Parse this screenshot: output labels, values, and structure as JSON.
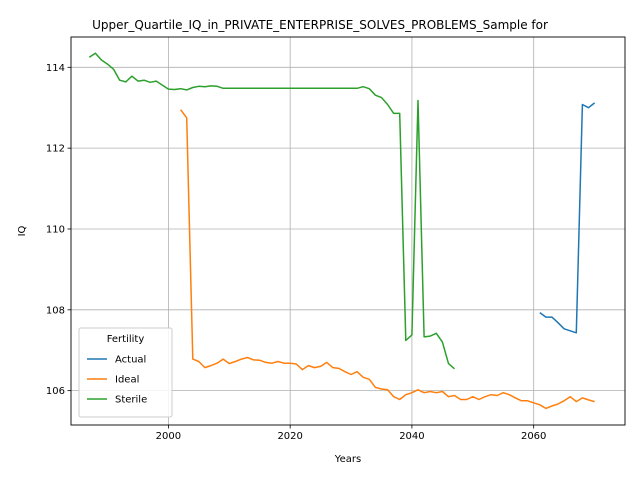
{
  "chart_data": {
    "type": "line",
    "title": "Upper_Quartile_IQ_in_PRIVATE_ENTERPRISE_SOLVES_PROBLEMS_Sample for",
    "xlabel": "Years",
    "ylabel": "IQ",
    "xlim": [
      1984,
      2075
    ],
    "ylim": [
      105.15,
      114.75
    ],
    "xticks": [
      2000,
      2020,
      2040,
      2060
    ],
    "yticks": [
      106,
      108,
      110,
      112,
      114
    ],
    "grid": true,
    "legend": {
      "title": "Fertility",
      "placement": "lower-left"
    },
    "series": [
      {
        "name": "Actual",
        "color": "#1f77b4",
        "x": [
          2061,
          2062,
          2063,
          2064,
          2065,
          2066,
          2067,
          2068,
          2069,
          2070
        ],
        "y": [
          107.93,
          107.82,
          107.82,
          107.68,
          107.53,
          107.48,
          107.43,
          113.08,
          113.0,
          113.12
        ]
      },
      {
        "name": "Ideal",
        "color": "#ff7f0e",
        "x": [
          2002,
          2003,
          2004,
          2005,
          2006,
          2007,
          2008,
          2009,
          2010,
          2011,
          2012,
          2013,
          2014,
          2015,
          2016,
          2017,
          2018,
          2019,
          2020,
          2021,
          2022,
          2023,
          2024,
          2025,
          2026,
          2027,
          2028,
          2029,
          2030,
          2031,
          2032,
          2033,
          2034,
          2035,
          2036,
          2037,
          2038,
          2039,
          2040,
          2041,
          2042,
          2043,
          2044,
          2045,
          2046,
          2047,
          2048,
          2049,
          2050,
          2051,
          2052,
          2053,
          2054,
          2055,
          2056,
          2057,
          2058,
          2059,
          2060,
          2061,
          2062,
          2063,
          2064,
          2065,
          2066,
          2067,
          2068,
          2069,
          2070
        ],
        "y": [
          112.95,
          112.75,
          106.78,
          106.72,
          106.57,
          106.62,
          106.68,
          106.78,
          106.67,
          106.72,
          106.78,
          106.82,
          106.76,
          106.75,
          106.7,
          106.68,
          106.72,
          106.68,
          106.68,
          106.66,
          106.52,
          106.62,
          106.57,
          106.6,
          106.7,
          106.57,
          106.55,
          106.47,
          106.4,
          106.47,
          106.33,
          106.28,
          106.08,
          106.04,
          106.02,
          105.85,
          105.78,
          105.9,
          105.95,
          106.02,
          105.95,
          105.98,
          105.95,
          105.98,
          105.85,
          105.88,
          105.78,
          105.78,
          105.85,
          105.78,
          105.85,
          105.9,
          105.88,
          105.95,
          105.9,
          105.82,
          105.75,
          105.75,
          105.7,
          105.65,
          105.56,
          105.62,
          105.67,
          105.75,
          105.85,
          105.73,
          105.82,
          105.77,
          105.73
        ]
      },
      {
        "name": "Sterile",
        "color": "#2ca02c",
        "x": [
          1987,
          1988,
          1989,
          1990,
          1991,
          1992,
          1993,
          1994,
          1995,
          1996,
          1997,
          1998,
          1999,
          2000,
          2001,
          2002,
          2003,
          2004,
          2005,
          2006,
          2007,
          2008,
          2009,
          2010,
          2011,
          2012,
          2013,
          2014,
          2015,
          2016,
          2017,
          2018,
          2019,
          2020,
          2021,
          2022,
          2023,
          2024,
          2025,
          2026,
          2027,
          2028,
          2029,
          2030,
          2031,
          2032,
          2033,
          2034,
          2035,
          2036,
          2037,
          2038,
          2039,
          2040,
          2041,
          2042,
          2043,
          2044,
          2045,
          2046,
          2047
        ],
        "y": [
          114.25,
          114.35,
          114.18,
          114.08,
          113.95,
          113.68,
          113.64,
          113.78,
          113.66,
          113.68,
          113.63,
          113.66,
          113.56,
          113.46,
          113.45,
          113.47,
          113.44,
          113.5,
          113.53,
          113.52,
          113.54,
          113.53,
          113.48,
          113.48,
          113.48,
          113.48,
          113.48,
          113.48,
          113.48,
          113.48,
          113.48,
          113.48,
          113.48,
          113.48,
          113.48,
          113.48,
          113.48,
          113.48,
          113.48,
          113.48,
          113.48,
          113.48,
          113.48,
          113.48,
          113.48,
          113.52,
          113.47,
          113.31,
          113.25,
          113.08,
          112.86,
          112.86,
          107.24,
          107.38,
          113.18,
          107.33,
          107.35,
          107.42,
          107.2,
          106.67,
          106.54
        ]
      }
    ]
  }
}
